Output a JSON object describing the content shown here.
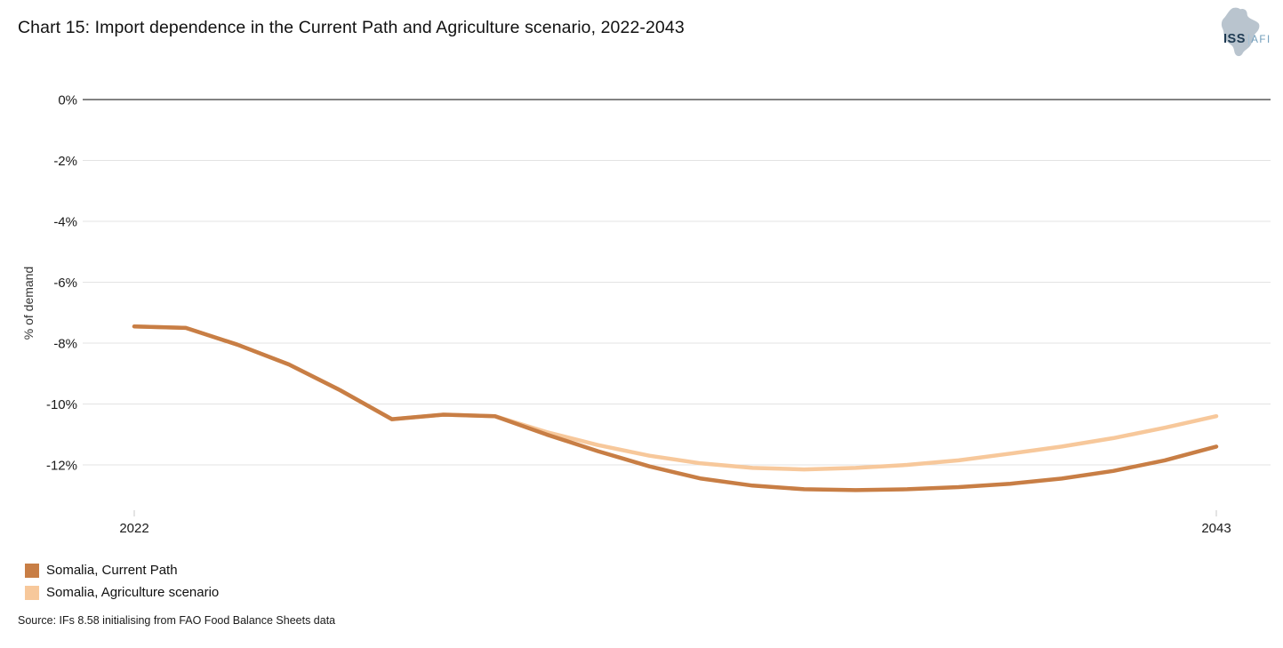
{
  "header": {
    "title": "Chart 15: Import dependence in the Current Path and Agriculture scenario, 2022-2043",
    "logo": {
      "primary": "ISS",
      "separator": "|",
      "secondary": "AFI"
    }
  },
  "chart_data": {
    "type": "line",
    "title": "Chart 15: Import dependence in the Current Path and Agriculture scenario, 2022-2043",
    "xlabel": "",
    "ylabel": "% of demand",
    "grid": true,
    "legend_position": "bottom-left",
    "ylim": [
      -13.8,
      0.4
    ],
    "x": [
      2022,
      2023,
      2024,
      2025,
      2026,
      2027,
      2028,
      2029,
      2030,
      2031,
      2032,
      2033,
      2034,
      2035,
      2036,
      2037,
      2038,
      2039,
      2040,
      2041,
      2042,
      2043
    ],
    "x_tick_labels": [
      "2022",
      "2043"
    ],
    "yticks": [
      {
        "value": 0,
        "label": "0%"
      },
      {
        "value": -2,
        "label": "-2%"
      },
      {
        "value": -4,
        "label": "-4%"
      },
      {
        "value": -6,
        "label": "-6%"
      },
      {
        "value": -8,
        "label": "-8%"
      },
      {
        "value": -10,
        "label": "-10%"
      },
      {
        "value": -12,
        "label": "-12%"
      }
    ],
    "series": [
      {
        "name": "Somalia, Current Path",
        "color": "#C87E45",
        "values": [
          -7.45,
          -7.5,
          -8.05,
          -8.7,
          -9.55,
          -10.5,
          -10.35,
          -10.4,
          -11.0,
          -11.55,
          -12.05,
          -12.45,
          -12.68,
          -12.8,
          -12.83,
          -12.8,
          -12.73,
          -12.62,
          -12.45,
          -12.2,
          -11.85,
          -11.4
        ]
      },
      {
        "name": "Somalia, Agriculture scenario",
        "color": "#F7C89B",
        "values": [
          -7.45,
          -7.5,
          -8.05,
          -8.7,
          -9.55,
          -10.5,
          -10.35,
          -10.4,
          -10.92,
          -11.35,
          -11.7,
          -11.95,
          -12.1,
          -12.15,
          -12.1,
          -12.0,
          -11.85,
          -11.63,
          -11.4,
          -11.12,
          -10.78,
          -10.4
        ]
      }
    ]
  },
  "legend": {
    "items": [
      {
        "label": "Somalia, Current Path",
        "color": "#C87E45"
      },
      {
        "label": "Somalia, Agriculture scenario",
        "color": "#F7C89B"
      }
    ]
  },
  "footer": {
    "source": "Source: IFs 8.58 initialising from FAO Food Balance Sheets data"
  },
  "style": {
    "axis_zero_line_color": "#595959",
    "gridline_color": "#e3e3e3",
    "tick_label_color": "#1a1a1a",
    "background": "#ffffff"
  }
}
